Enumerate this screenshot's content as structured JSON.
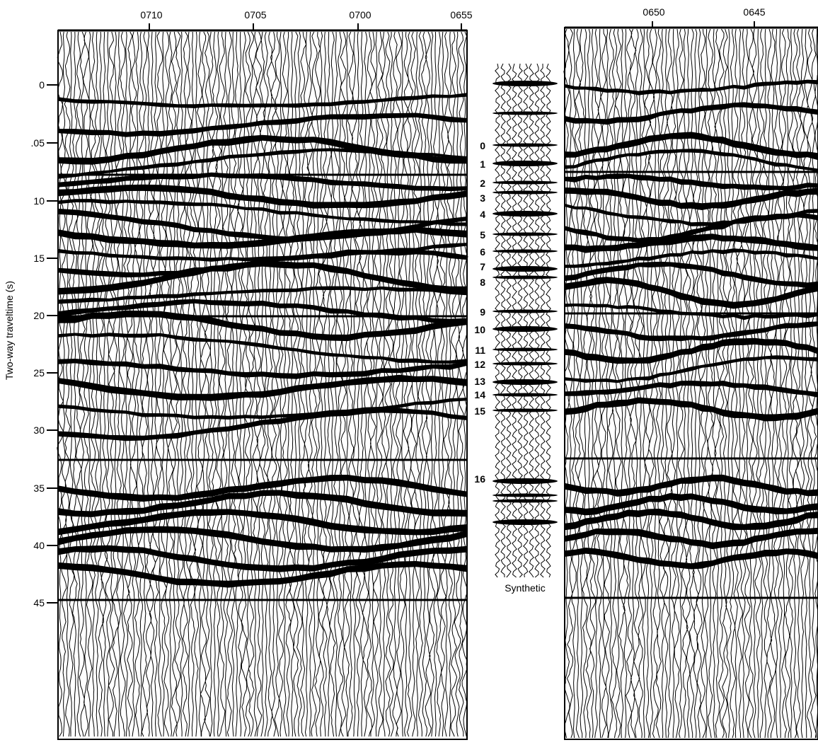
{
  "figure": {
    "y_axis_label": "Two-way traveltime (s)",
    "synthetic_label": "Synthetic",
    "colors": {
      "ink": "#000000",
      "paper": "#ffffff"
    },
    "left_panel": {
      "shot_labels": [
        "0710",
        "0705",
        "0700",
        "0655"
      ]
    },
    "right_panel": {
      "shot_labels": [
        "0650",
        "0645"
      ]
    },
    "time_ticks": [
      "0",
      ".05",
      "10",
      "15",
      "20",
      "25",
      "30",
      "35",
      "40",
      "45"
    ],
    "horizon_labels": [
      "0",
      "1",
      "2",
      "3",
      "4",
      "5",
      "6",
      "7",
      "8",
      "9",
      "10",
      "11",
      "12",
      "13",
      "14",
      "15",
      "16"
    ]
  }
}
